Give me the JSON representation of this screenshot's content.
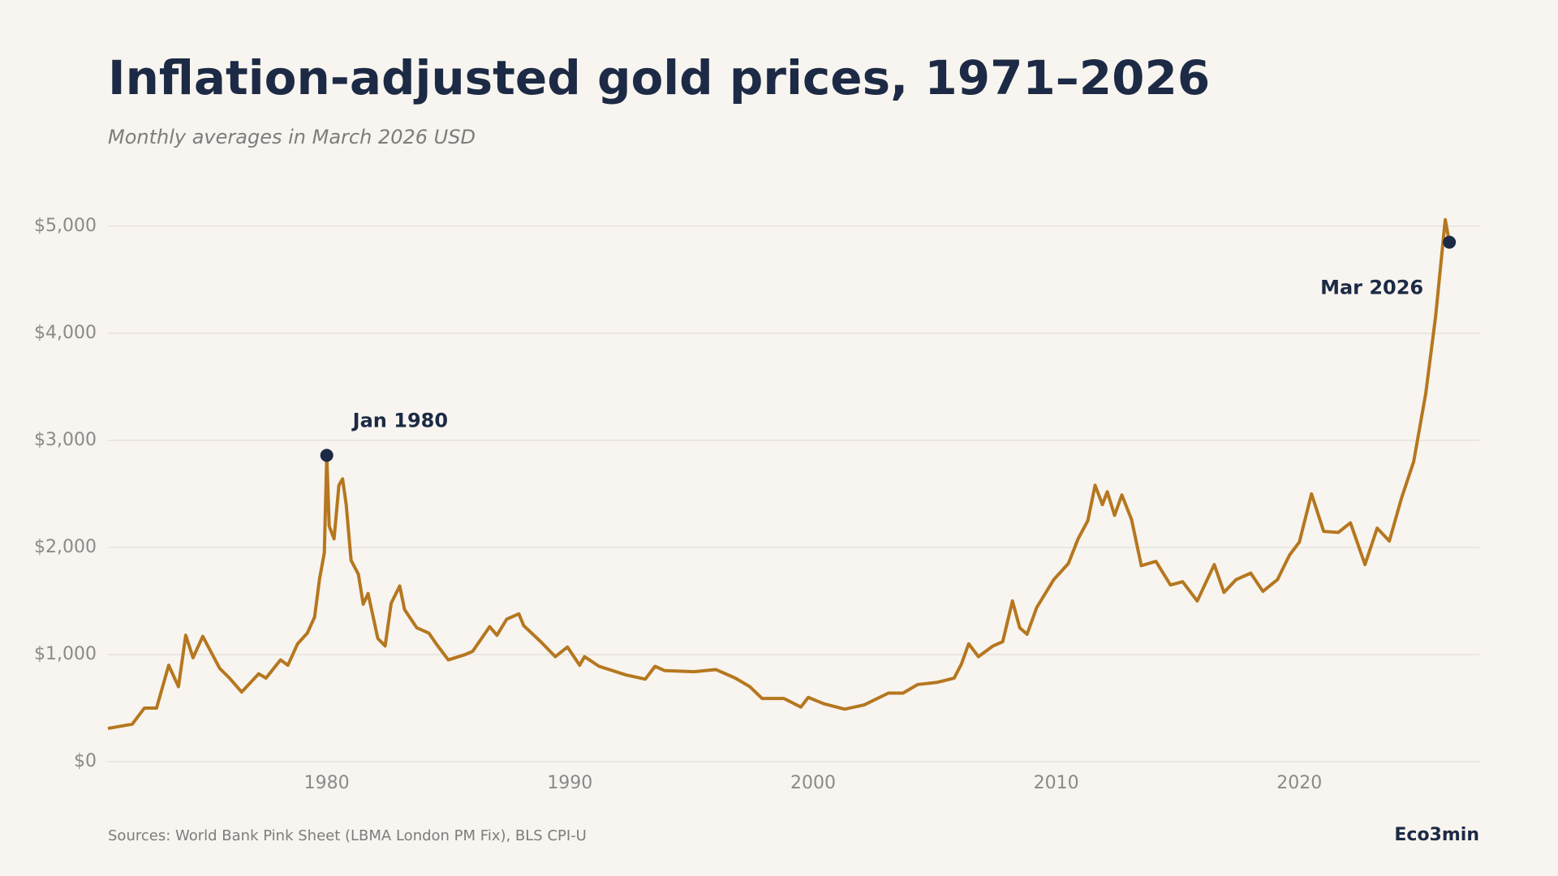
{
  "chart_data": {
    "type": "line",
    "title": "Inflation-adjusted gold prices, 1971–2026",
    "subtitle": "Monthly averages in March 2026 USD",
    "source": "Sources: World Bank Pink Sheet (LBMA London PM Fix), BLS CPI-U",
    "brand": "Eco3min",
    "xlim": [
      1971,
      2027.4
    ],
    "xticks": [
      1980,
      1990,
      2000,
      2010,
      2020
    ],
    "ylim": [
      0,
      5400
    ],
    "yticks": [
      {
        "value": 0,
        "label": "$0"
      },
      {
        "value": 1000,
        "label": "$1,000"
      },
      {
        "value": 2000,
        "label": "$2,000"
      },
      {
        "value": 3000,
        "label": "$3,000"
      },
      {
        "value": 4000,
        "label": "$4,000"
      },
      {
        "value": 5000,
        "label": "$5,000"
      }
    ],
    "grid": true,
    "x": [
      1971.0,
      1972.0,
      1972.5,
      1973.0,
      1973.5,
      1973.9,
      1974.2,
      1974.5,
      1974.9,
      1975.6,
      1976.0,
      1976.5,
      1977.2,
      1977.5,
      1978.1,
      1978.4,
      1978.8,
      1979.2,
      1979.5,
      1979.7,
      1979.9,
      1980.0,
      1980.1,
      1980.3,
      1980.5,
      1980.65,
      1980.8,
      1981.0,
      1981.3,
      1981.5,
      1981.7,
      1982.1,
      1982.4,
      1982.65,
      1983.0,
      1983.2,
      1983.7,
      1984.2,
      1984.5,
      1985.0,
      1985.7,
      1986.0,
      1986.7,
      1987.0,
      1987.4,
      1987.9,
      1988.1,
      1988.8,
      1989.4,
      1989.9,
      1990.4,
      1990.6,
      1991.2,
      1992.3,
      1993.1,
      1993.5,
      1993.9,
      1995.1,
      1996.0,
      1996.8,
      1997.4,
      1997.9,
      1998.8,
      1999.5,
      1999.8,
      2000.45,
      2001.3,
      2002.1,
      2003.1,
      2003.7,
      2004.3,
      2005.1,
      2005.8,
      2006.1,
      2006.4,
      2006.8,
      2007.4,
      2007.8,
      2008.2,
      2008.5,
      2008.8,
      2009.2,
      2009.9,
      2010.5,
      2010.9,
      2011.3,
      2011.6,
      2011.9,
      2012.1,
      2012.4,
      2012.7,
      2013.1,
      2013.5,
      2014.1,
      2014.7,
      2015.2,
      2015.8,
      2016.5,
      2016.9,
      2017.4,
      2018.0,
      2018.5,
      2019.1,
      2019.6,
      2020.0,
      2020.5,
      2021.0,
      2021.6,
      2022.1,
      2022.7,
      2023.2,
      2023.7,
      2024.2,
      2024.7,
      2025.2,
      2025.6,
      2026.0,
      2026.17
    ],
    "series": [
      {
        "name": "Gold price",
        "color": "#b5771f",
        "values": [
          310,
          350,
          500,
          500,
          900,
          700,
          1180,
          970,
          1170,
          870,
          780,
          650,
          820,
          780,
          950,
          900,
          1100,
          1200,
          1350,
          1700,
          1950,
          2860,
          2200,
          2080,
          2580,
          2640,
          2400,
          1880,
          1750,
          1470,
          1570,
          1150,
          1080,
          1480,
          1640,
          1420,
          1250,
          1200,
          1100,
          950,
          1000,
          1030,
          1260,
          1180,
          1330,
          1380,
          1270,
          1120,
          980,
          1070,
          900,
          980,
          890,
          810,
          770,
          890,
          850,
          840,
          860,
          780,
          700,
          590,
          590,
          510,
          600,
          540,
          490,
          530,
          640,
          640,
          720,
          740,
          780,
          910,
          1100,
          980,
          1080,
          1120,
          1500,
          1250,
          1190,
          1440,
          1700,
          1850,
          2080,
          2250,
          2580,
          2400,
          2520,
          2300,
          2490,
          2260,
          1830,
          1870,
          1650,
          1680,
          1500,
          1840,
          1580,
          1700,
          1760,
          1590,
          1700,
          1930,
          2050,
          2500,
          2150,
          2140,
          2230,
          1840,
          2180,
          2060,
          2460,
          2800,
          3440,
          4150,
          5060,
          4850
        ]
      }
    ],
    "annotations": [
      {
        "label": "Jan 1980",
        "x": 1980.0,
        "y": 2860
      },
      {
        "label": "Mar 2026",
        "x": 2026.17,
        "y": 4850
      }
    ]
  }
}
